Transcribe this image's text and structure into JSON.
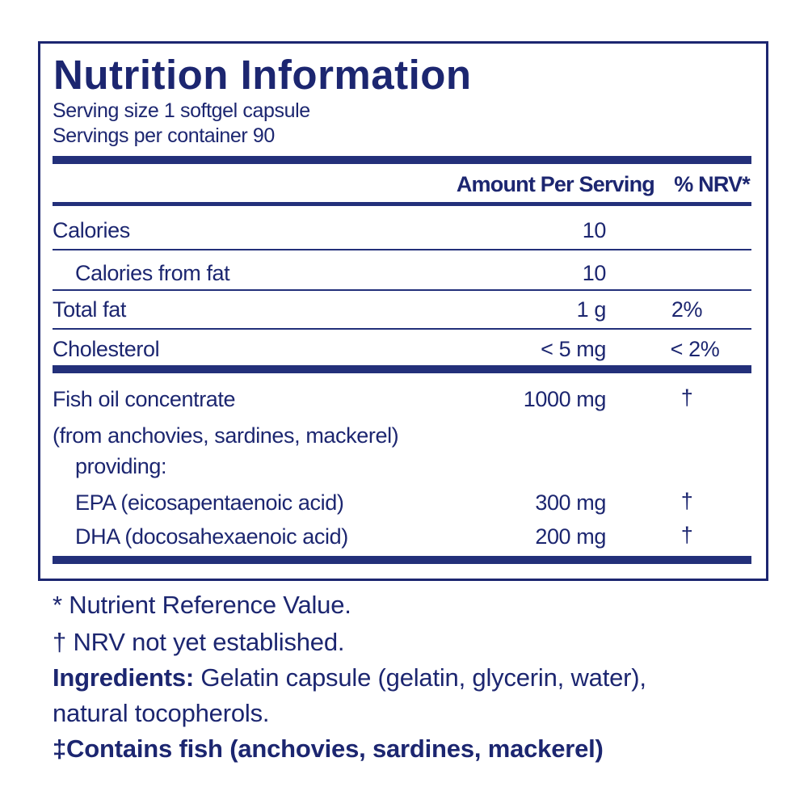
{
  "title": "Nutrition Information",
  "serving_size": "Serving size  1 softgel capsule",
  "servings_per_container": "Servings per container  90",
  "header": {
    "amount": "Amount Per Serving",
    "nrv": "% NRV*"
  },
  "rows": [
    {
      "label": "Calories",
      "amount": "10",
      "nrv": ""
    },
    {
      "label": "Calories from fat",
      "amount": "10",
      "nrv": ""
    },
    {
      "label": "Total fat",
      "amount": "1 g",
      "nrv": "2%"
    },
    {
      "label": "Cholesterol",
      "amount": "< 5 mg",
      "nrv": "< 2%"
    },
    {
      "label": "Fish oil concentrate",
      "amount": "1000 mg",
      "nrv": "†"
    },
    {
      "label": "(from anchovies, sardines, mackerel)",
      "amount": "",
      "nrv": ""
    },
    {
      "label": "providing:",
      "amount": "",
      "nrv": ""
    },
    {
      "label": "EPA (eicosapentaenoic acid)",
      "amount": "300 mg",
      "nrv": "†"
    },
    {
      "label": "DHA (docosahexaenoic acid)",
      "amount": "200 mg",
      "nrv": "†"
    }
  ],
  "footnotes": {
    "nrv_def": "* Nutrient Reference Value.",
    "dagger": "† NRV not yet established.",
    "ingredients_label": "Ingredients:",
    "ingredients_text": " Gelatin capsule (gelatin, glycerin, water),",
    "ingredients_text2": "natural tocopherols.",
    "allergen": "‡Contains fish (anchovies, sardines, mackerel)"
  },
  "colors": {
    "brand": "#1c2670"
  }
}
